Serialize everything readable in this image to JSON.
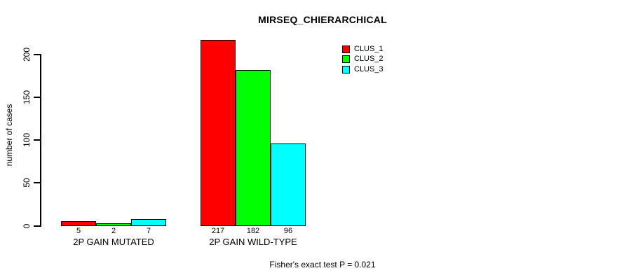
{
  "title": "MIRSEQ_CHIERARCHICAL",
  "footer": "Fisher's exact test P = 0.021",
  "chart_data": {
    "type": "bar",
    "title": "MIRSEQ_CHIERARCHICAL",
    "subtitle": "Fisher's exact test P = 0.021",
    "categories": [
      "2P GAIN MUTATED",
      "2P GAIN WILD-TYPE"
    ],
    "series": [
      {
        "name": "CLUS_1",
        "color": "#ff0000",
        "values": [
          5,
          217
        ]
      },
      {
        "name": "CLUS_2",
        "color": "#00ff00",
        "values": [
          2,
          182
        ]
      },
      {
        "name": "CLUS_3",
        "color": "#00ffff",
        "values": [
          7,
          96
        ]
      }
    ],
    "xlabel": "",
    "ylabel": "number of cases",
    "yticks": [
      0,
      50,
      100,
      150,
      200
    ],
    "ylim": [
      0,
      220
    ],
    "grid": false,
    "bar_value_labels_shown": true,
    "legend_position": "top-right",
    "bar_border_color": "#000000"
  }
}
